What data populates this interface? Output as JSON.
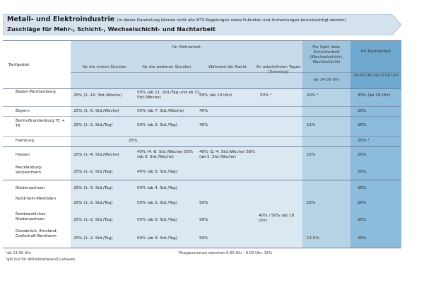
{
  "header": {
    "title": "Metall- und Elektroindustrie",
    "title_note": "(In dieser Darstellung können nicht alle MTV-Regelungen sowie Fußnoten und Anmerkungen berücksichtigt werden)",
    "subtitle": "Zuschläge für Mehr-, Schicht-, Wechselschicht- und Nachtarbeit"
  },
  "columns": {
    "tarifgebiet": "Tarifgebiet",
    "mehrarbeit_group": "für Mehrarbeit",
    "ersten_stunden": "für die ersten Stunden",
    "weiteren_stunden": "für die weiteren Stunden",
    "waehrend_nacht": "Während der Nacht",
    "an_feiertagen": "An arbeitsfreien Tagen (Samstag)",
    "spaetarbeit": "Für Spät- bzw. Schichtarbeit (Wechselschicht, Nachtschicht)",
    "ab_uhr": "ab 14:00 Uhr",
    "nachtarbeit": "für Nachtarbeit",
    "nacht_zeit": "20:00 Uhr bis 6:00 Uhr"
  },
  "rows": [
    {
      "region": "Baden-Württemberg",
      "c1": "25% (1.-10. Std./Woche)",
      "c2": "50% (ab 11. Std./Tag und ab 11. Std./Woche)",
      "c3": "50% (ab 19 Uhr)",
      "c4": "50% ²",
      "c5": "20% ²",
      "c6": "33% (ab 19 Uhr)"
    },
    {
      "region": "Bayern",
      "c1": "25% (1.-6. Std./Woche)",
      "c2": "50% (ab 7. Std./Woche)",
      "c3": "40%",
      "c4": "",
      "c5": "",
      "c6": "25%"
    },
    {
      "region": "Berlin-Brandenburg TC + TK",
      "c1": "25% (1.-2. Std./Tag)",
      "c2": "50% (ab 3. Std./Tag)",
      "c3": "40%",
      "c4": "",
      "c5": "12%",
      "c6": "25%"
    },
    {
      "region": "Hamburg",
      "c1": "25%",
      "c2": "",
      "c3": "",
      "c4": "",
      "c5": "",
      "c6": "25% ³"
    },
    {
      "region": "Hessen",
      "c1": "25% (1.-4. Std./Woche)",
      "c2": "40% (4.-8. Std./Woche) 50% (ab 9. Std./Woche)",
      "c3": "40% (1.-4. Std./Woche) 50% (ab 5. Std./Woche)",
      "c4": "",
      "c5": "15%",
      "c6": "25%"
    },
    {
      "region": "Mecklenburg-Vorpommern",
      "c1": "25% (1.-2. Std./Tag)",
      "c2": "40% (ab 3. Std./Tag)",
      "c3": "",
      "c4": "",
      "c5": "",
      "c6": "25%"
    },
    {
      "region": "Niedersachsen",
      "c1": "25% (1.-3. Std./Tag)",
      "c2": "50% (ab 4. Std./Tag)",
      "c3": "",
      "c4": "",
      "c5": "",
      "c6": "25%"
    },
    {
      "region": "Nordrhein-Westfalen",
      "c1": "25% (1.-2. Std./Tag)",
      "c2": "50% (ab 3. Std./Tag)",
      "c3": "50%",
      "c4": "",
      "c5": "15%",
      "c6": "25%"
    },
    {
      "region": "Nordwestliches Niedersachsen",
      "c1": "25% (1.-2. Std./Tag)",
      "c2": "50% (ab 3. Std./Tag)",
      "c3": "50%",
      "c4": "40% / 50% (ab 18 Uhr)",
      "c5": "",
      "c6": "25%"
    },
    {
      "region": "Osnabrück, Emsland, Grafschaft Bentheim",
      "c1": "25% (1.-2. Std./Tag)",
      "c2": "50% (ab 3. Std./Tag)",
      "c3": "50%",
      "c4": "",
      "c5": "12,5%",
      "c6": "25%"
    }
  ],
  "footnotes": {
    "f1": "¹ab 13:00 Uhr",
    "f2": "²gilt nur für Wilhelmshaven/Cuxhaven",
    "f3": "³Ausgenommen zwischen 0:00 Uhr - 6:00 Uhr: 15%"
  },
  "colors": {
    "banner_fill": "#d5e2ee",
    "banner_edge": "#9fb3c8",
    "header_light": "#c7dbea",
    "header_mid": "#9ec3dc",
    "header_dark": "#6fa9cf",
    "col_light": "#dbe8f2",
    "col_mid": "#b6d3e6",
    "col_dark": "#8dbbdb",
    "line": "#6b7e96"
  }
}
